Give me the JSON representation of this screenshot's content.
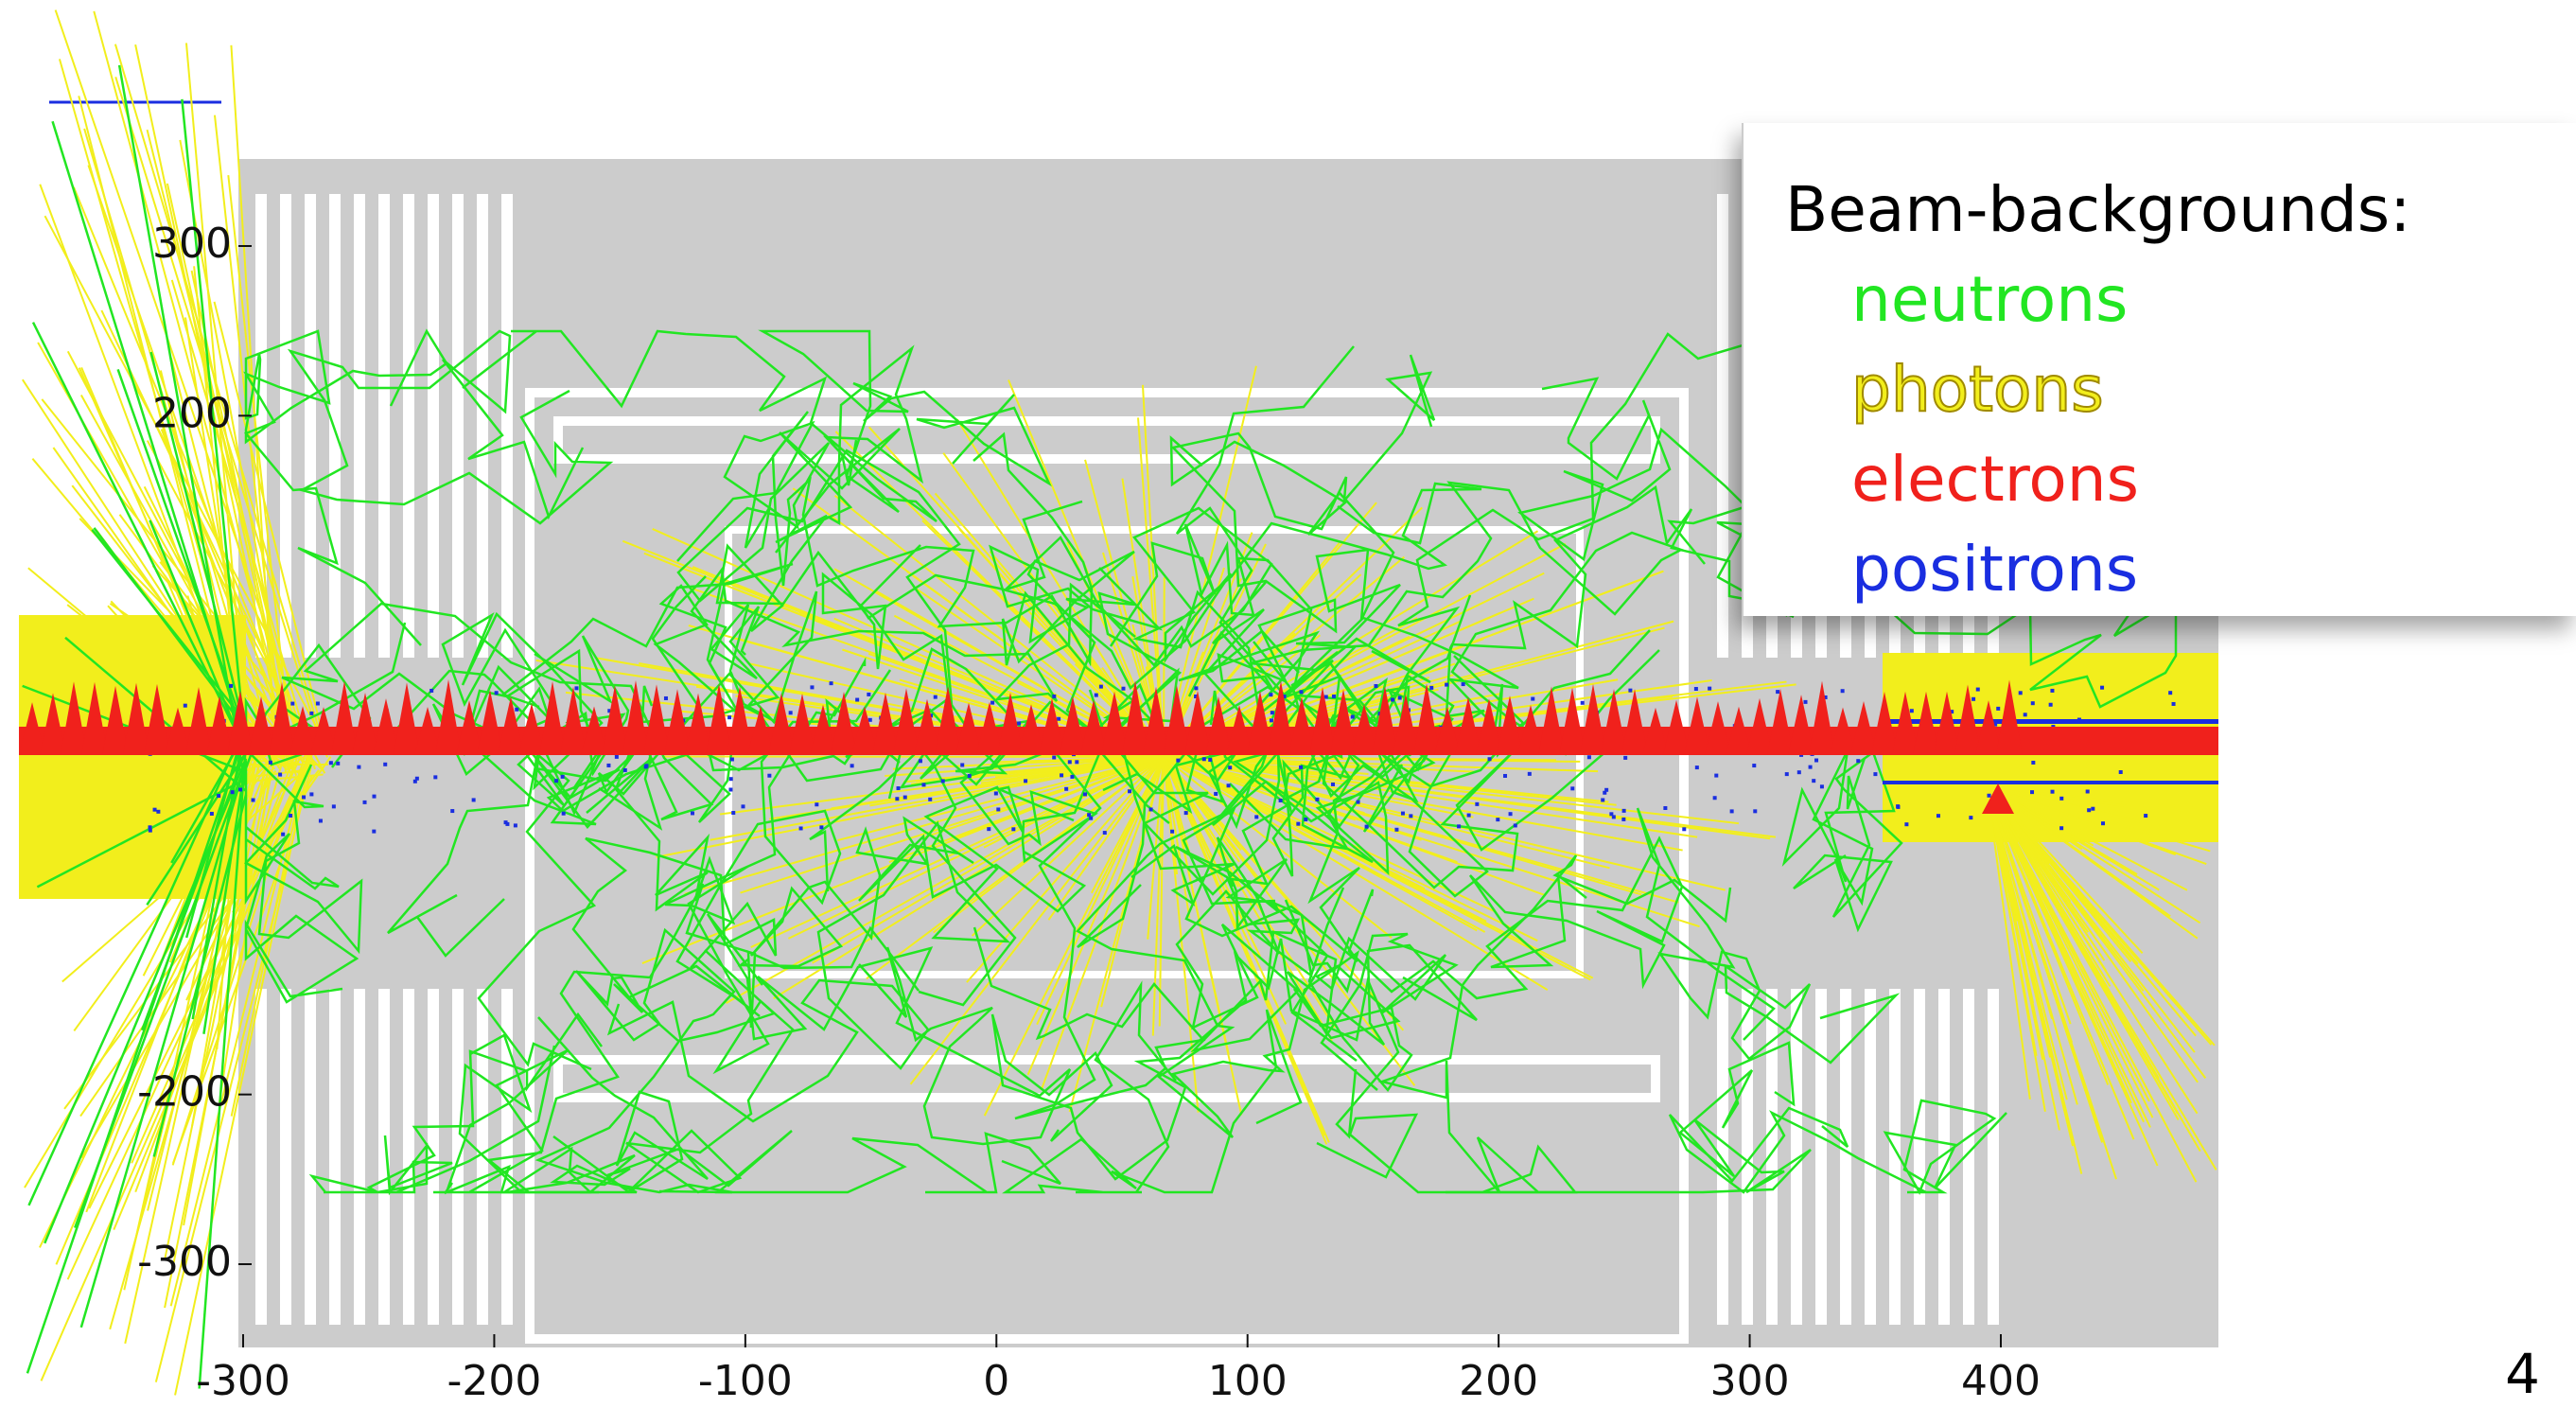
{
  "plot": {
    "xticks": [
      -300,
      -200,
      -100,
      0,
      100,
      200,
      300,
      400
    ],
    "yticks": [
      300,
      200,
      -200,
      -300
    ]
  },
  "legend": {
    "title": "Beam-backgrounds:",
    "items": [
      {
        "label": "neutrons",
        "color": "#22e622"
      },
      {
        "label": "photons",
        "color": "#f2ee1c"
      },
      {
        "label": "electrons",
        "color": "#f0211c"
      },
      {
        "label": "positrons",
        "color": "#1a2ee0"
      }
    ]
  },
  "page_number": "4"
}
